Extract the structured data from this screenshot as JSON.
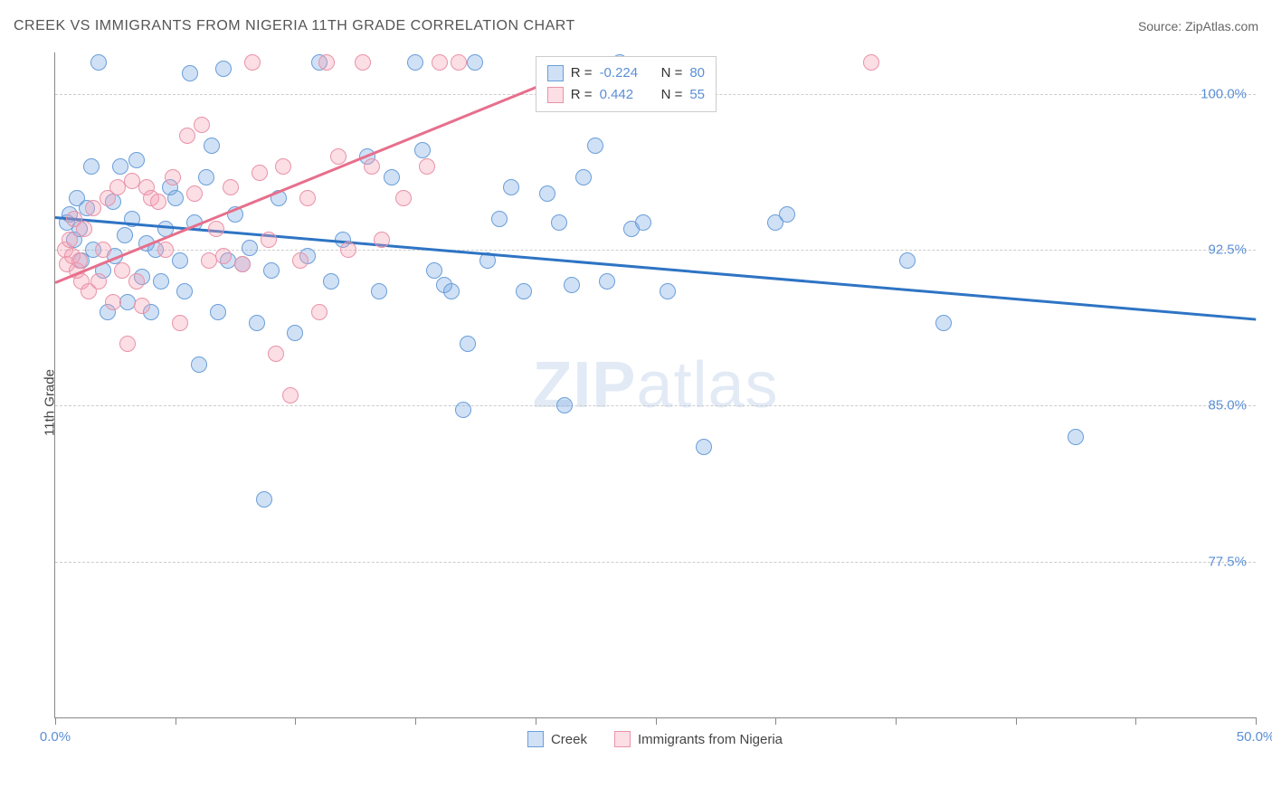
{
  "header": {
    "title": "CREEK VS IMMIGRANTS FROM NIGERIA 11TH GRADE CORRELATION CHART",
    "source": "Source: ZipAtlas.com"
  },
  "chart": {
    "type": "scatter",
    "ylabel": "11th Grade",
    "watermark_a": "ZIP",
    "watermark_b": "atlas",
    "background_color": "#ffffff",
    "grid_color": "#cccccc",
    "axis_color": "#888888",
    "tick_label_color": "#5b8fd6",
    "xlim": [
      0,
      50
    ],
    "ylim": [
      70,
      102
    ],
    "xticks": [
      0,
      5,
      10,
      15,
      20,
      25,
      30,
      35,
      40,
      45,
      50
    ],
    "xtick_labels": {
      "0": "0.0%",
      "50": "50.0%"
    },
    "yticks": [
      77.5,
      85.0,
      92.5,
      100.0
    ],
    "ytick_labels": [
      "77.5%",
      "85.0%",
      "92.5%",
      "100.0%"
    ],
    "marker_radius": 9,
    "marker_stroke_width": 1.5,
    "series": [
      {
        "name": "Creek",
        "fill": "rgba(120,170,230,0.35)",
        "stroke": "#6a9ed8",
        "trend_color": "#2e74c4",
        "trend_width": 2.5,
        "R": "-0.224",
        "N": "80",
        "trend": {
          "x1": 0,
          "y1": 94.1,
          "x2": 50,
          "y2": 89.2
        },
        "points": [
          [
            0.5,
            93.8
          ],
          [
            0.6,
            94.2
          ],
          [
            0.8,
            93.0
          ],
          [
            0.9,
            95.0
          ],
          [
            1.0,
            93.5
          ],
          [
            1.1,
            92.0
          ],
          [
            1.3,
            94.5
          ],
          [
            1.5,
            96.5
          ],
          [
            1.6,
            92.5
          ],
          [
            1.8,
            101.5
          ],
          [
            2.0,
            91.5
          ],
          [
            2.2,
            89.5
          ],
          [
            2.4,
            94.8
          ],
          [
            2.5,
            92.2
          ],
          [
            2.7,
            96.5
          ],
          [
            2.9,
            93.2
          ],
          [
            3.0,
            90.0
          ],
          [
            3.2,
            94.0
          ],
          [
            3.4,
            96.8
          ],
          [
            3.6,
            91.2
          ],
          [
            3.8,
            92.8
          ],
          [
            4.0,
            89.5
          ],
          [
            4.2,
            92.5
          ],
          [
            4.4,
            91.0
          ],
          [
            4.6,
            93.5
          ],
          [
            4.8,
            95.5
          ],
          [
            5.0,
            95.0
          ],
          [
            5.2,
            92.0
          ],
          [
            5.4,
            90.5
          ],
          [
            5.6,
            101.0
          ],
          [
            5.8,
            93.8
          ],
          [
            6.0,
            87.0
          ],
          [
            6.3,
            96.0
          ],
          [
            6.5,
            97.5
          ],
          [
            6.8,
            89.5
          ],
          [
            7.0,
            101.2
          ],
          [
            7.2,
            92.0
          ],
          [
            7.5,
            94.2
          ],
          [
            7.8,
            91.8
          ],
          [
            8.1,
            92.6
          ],
          [
            8.4,
            89.0
          ],
          [
            8.7,
            80.5
          ],
          [
            9.0,
            91.5
          ],
          [
            9.3,
            95.0
          ],
          [
            10.0,
            88.5
          ],
          [
            10.5,
            92.2
          ],
          [
            11.0,
            101.5
          ],
          [
            11.5,
            91.0
          ],
          [
            12.0,
            93.0
          ],
          [
            13.0,
            97.0
          ],
          [
            13.5,
            90.5
          ],
          [
            14.0,
            96.0
          ],
          [
            15.0,
            101.5
          ],
          [
            15.3,
            97.3
          ],
          [
            15.8,
            91.5
          ],
          [
            16.2,
            90.8
          ],
          [
            16.5,
            90.5
          ],
          [
            17.0,
            84.8
          ],
          [
            17.2,
            88.0
          ],
          [
            17.5,
            101.5
          ],
          [
            18.0,
            92.0
          ],
          [
            18.5,
            94.0
          ],
          [
            19.0,
            95.5
          ],
          [
            19.5,
            90.5
          ],
          [
            20.5,
            95.2
          ],
          [
            21.0,
            93.8
          ],
          [
            21.2,
            85.0
          ],
          [
            21.5,
            90.8
          ],
          [
            22.0,
            96.0
          ],
          [
            22.5,
            97.5
          ],
          [
            23.0,
            91.0
          ],
          [
            23.5,
            101.5
          ],
          [
            24.0,
            93.5
          ],
          [
            24.5,
            93.8
          ],
          [
            25.5,
            90.5
          ],
          [
            27.0,
            83.0
          ],
          [
            30.0,
            93.8
          ],
          [
            30.5,
            94.2
          ],
          [
            35.5,
            92.0
          ],
          [
            37.0,
            89.0
          ],
          [
            42.5,
            83.5
          ]
        ]
      },
      {
        "name": "Immigrants from Nigeria",
        "fill": "rgba(245,160,180,0.35)",
        "stroke": "#e893a8",
        "trend_color": "#e76f8c",
        "trend_width": 2.5,
        "R": "0.442",
        "N": "55",
        "trend": {
          "x1": 0,
          "y1": 91.0,
          "x2": 23,
          "y2": 101.8
        },
        "points": [
          [
            0.4,
            92.5
          ],
          [
            0.5,
            91.8
          ],
          [
            0.6,
            93.0
          ],
          [
            0.7,
            92.2
          ],
          [
            0.8,
            94.0
          ],
          [
            0.9,
            91.5
          ],
          [
            1.0,
            92.0
          ],
          [
            1.1,
            91.0
          ],
          [
            1.2,
            93.5
          ],
          [
            1.4,
            90.5
          ],
          [
            1.6,
            94.5
          ],
          [
            1.8,
            91.0
          ],
          [
            2.0,
            92.5
          ],
          [
            2.2,
            95.0
          ],
          [
            2.4,
            90.0
          ],
          [
            2.6,
            95.5
          ],
          [
            2.8,
            91.5
          ],
          [
            3.0,
            88.0
          ],
          [
            3.2,
            95.8
          ],
          [
            3.4,
            91.0
          ],
          [
            3.6,
            89.8
          ],
          [
            3.8,
            95.5
          ],
          [
            4.0,
            95.0
          ],
          [
            4.3,
            94.8
          ],
          [
            4.6,
            92.5
          ],
          [
            4.9,
            96.0
          ],
          [
            5.2,
            89.0
          ],
          [
            5.5,
            98.0
          ],
          [
            5.8,
            95.2
          ],
          [
            6.1,
            98.5
          ],
          [
            6.4,
            92.0
          ],
          [
            6.7,
            93.5
          ],
          [
            7.0,
            92.2
          ],
          [
            7.3,
            95.5
          ],
          [
            7.8,
            91.8
          ],
          [
            8.2,
            101.5
          ],
          [
            8.5,
            96.2
          ],
          [
            8.9,
            93.0
          ],
          [
            9.2,
            87.5
          ],
          [
            9.5,
            96.5
          ],
          [
            9.8,
            85.5
          ],
          [
            10.2,
            92.0
          ],
          [
            10.5,
            95.0
          ],
          [
            11.0,
            89.5
          ],
          [
            11.3,
            101.5
          ],
          [
            11.8,
            97.0
          ],
          [
            12.2,
            92.5
          ],
          [
            12.8,
            101.5
          ],
          [
            13.2,
            96.5
          ],
          [
            13.6,
            93.0
          ],
          [
            14.5,
            95.0
          ],
          [
            15.5,
            96.5
          ],
          [
            16.0,
            101.5
          ],
          [
            16.8,
            101.5
          ],
          [
            34.0,
            101.5
          ]
        ]
      }
    ],
    "legend_top": {
      "R_label": "R =",
      "N_label": "N ="
    },
    "legend_bottom": [
      {
        "label": "Creek"
      },
      {
        "label": "Immigrants from Nigeria"
      }
    ]
  }
}
